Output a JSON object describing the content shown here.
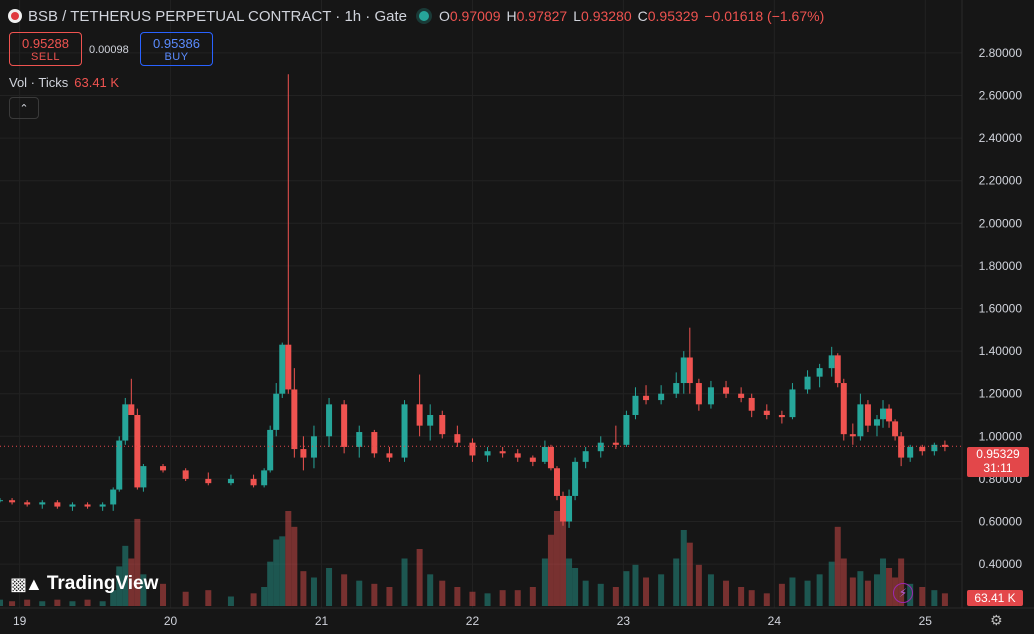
{
  "header": {
    "symbol_title": "BSB / TETHERUS PERPETUAL CONTRACT · 1h · Gate",
    "open_label": "O",
    "open": "0.97009",
    "high_label": "H",
    "high": "0.97827",
    "low_label": "L",
    "low": "0.93280",
    "close_label": "C",
    "close": "0.95329",
    "change": "−0.01618 (−1.67%)"
  },
  "trade": {
    "sell_price": "0.95288",
    "sell_label": "SELL",
    "spread": "0.00098",
    "buy_price": "0.95386",
    "buy_label": "BUY"
  },
  "volume_legend": {
    "label": "Vol · Ticks",
    "value": "63.41 K"
  },
  "collapse_icon": "chevron-up-icon",
  "brand": {
    "name": "TradingView",
    "icon": "tradingview-logo"
  },
  "last_price": {
    "price": "0.95329",
    "countdown": "31:11"
  },
  "volume_tag": "63.41 K",
  "colors": {
    "up": "#26a69a",
    "down": "#ef5350",
    "background": "#161616"
  },
  "chart_data": {
    "type": "candlestick",
    "y_axis": {
      "ticks": [
        "2.80000",
        "2.60000",
        "2.40000",
        "2.20000",
        "2.00000",
        "1.80000",
        "1.60000",
        "1.40000",
        "1.20000",
        "1.00000",
        "0.80000",
        "0.60000",
        "0.40000"
      ],
      "range": [
        0.33,
        2.87
      ]
    },
    "x_axis": {
      "ticks": [
        "19",
        "20",
        "21",
        "22",
        "23",
        "24",
        "25"
      ],
      "range": [
        18.87,
        25.23
      ]
    },
    "last_price_line": 0.95329,
    "candles": [
      {
        "x": 18.87,
        "o": 0.7,
        "h": 0.71,
        "l": 0.69,
        "c": 0.7
      },
      {
        "x": 18.95,
        "o": 0.7,
        "h": 0.71,
        "l": 0.68,
        "c": 0.69
      },
      {
        "x": 19.05,
        "o": 0.69,
        "h": 0.7,
        "l": 0.67,
        "c": 0.68
      },
      {
        "x": 19.15,
        "o": 0.68,
        "h": 0.7,
        "l": 0.66,
        "c": 0.69
      },
      {
        "x": 19.25,
        "o": 0.69,
        "h": 0.7,
        "l": 0.66,
        "c": 0.67
      },
      {
        "x": 19.35,
        "o": 0.67,
        "h": 0.69,
        "l": 0.65,
        "c": 0.68
      },
      {
        "x": 19.45,
        "o": 0.68,
        "h": 0.69,
        "l": 0.66,
        "c": 0.67
      },
      {
        "x": 19.55,
        "o": 0.67,
        "h": 0.69,
        "l": 0.65,
        "c": 0.68
      },
      {
        "x": 19.62,
        "o": 0.68,
        "h": 0.76,
        "l": 0.65,
        "c": 0.75
      },
      {
        "x": 19.66,
        "o": 0.75,
        "h": 1.0,
        "l": 0.74,
        "c": 0.98
      },
      {
        "x": 19.7,
        "o": 0.98,
        "h": 1.18,
        "l": 0.96,
        "c": 1.15
      },
      {
        "x": 19.74,
        "o": 1.15,
        "h": 1.27,
        "l": 1.1,
        "c": 1.1
      },
      {
        "x": 19.78,
        "o": 1.1,
        "h": 1.13,
        "l": 0.75,
        "c": 0.76
      },
      {
        "x": 19.82,
        "o": 0.76,
        "h": 0.87,
        "l": 0.74,
        "c": 0.86
      },
      {
        "x": 19.95,
        "o": 0.86,
        "h": 0.87,
        "l": 0.83,
        "c": 0.84
      },
      {
        "x": 20.1,
        "o": 0.84,
        "h": 0.85,
        "l": 0.79,
        "c": 0.8
      },
      {
        "x": 20.25,
        "o": 0.8,
        "h": 0.83,
        "l": 0.77,
        "c": 0.78
      },
      {
        "x": 20.4,
        "o": 0.78,
        "h": 0.82,
        "l": 0.77,
        "c": 0.8
      },
      {
        "x": 20.55,
        "o": 0.8,
        "h": 0.82,
        "l": 0.76,
        "c": 0.77
      },
      {
        "x": 20.62,
        "o": 0.77,
        "h": 0.85,
        "l": 0.76,
        "c": 0.84
      },
      {
        "x": 20.66,
        "o": 0.84,
        "h": 1.05,
        "l": 0.83,
        "c": 1.03
      },
      {
        "x": 20.7,
        "o": 1.03,
        "h": 1.25,
        "l": 1.0,
        "c": 1.2
      },
      {
        "x": 20.74,
        "o": 1.2,
        "h": 1.44,
        "l": 1.18,
        "c": 1.43
      },
      {
        "x": 20.78,
        "o": 1.43,
        "h": 2.7,
        "l": 1.2,
        "c": 1.22
      },
      {
        "x": 20.82,
        "o": 1.22,
        "h": 1.32,
        "l": 0.9,
        "c": 0.94
      },
      {
        "x": 20.88,
        "o": 0.94,
        "h": 1.0,
        "l": 0.84,
        "c": 0.9
      },
      {
        "x": 20.95,
        "o": 0.9,
        "h": 1.05,
        "l": 0.85,
        "c": 1.0
      },
      {
        "x": 21.05,
        "o": 1.0,
        "h": 1.18,
        "l": 0.95,
        "c": 1.15
      },
      {
        "x": 21.15,
        "o": 1.15,
        "h": 1.17,
        "l": 0.92,
        "c": 0.95
      },
      {
        "x": 21.25,
        "o": 0.95,
        "h": 1.05,
        "l": 0.9,
        "c": 1.02
      },
      {
        "x": 21.35,
        "o": 1.02,
        "h": 1.03,
        "l": 0.9,
        "c": 0.92
      },
      {
        "x": 21.45,
        "o": 0.92,
        "h": 0.95,
        "l": 0.88,
        "c": 0.9
      },
      {
        "x": 21.55,
        "o": 0.9,
        "h": 1.17,
        "l": 0.88,
        "c": 1.15
      },
      {
        "x": 21.65,
        "o": 1.15,
        "h": 1.29,
        "l": 1.0,
        "c": 1.05
      },
      {
        "x": 21.72,
        "o": 1.05,
        "h": 1.15,
        "l": 0.98,
        "c": 1.1
      },
      {
        "x": 21.8,
        "o": 1.1,
        "h": 1.12,
        "l": 0.99,
        "c": 1.01
      },
      {
        "x": 21.9,
        "o": 1.01,
        "h": 1.05,
        "l": 0.95,
        "c": 0.97
      },
      {
        "x": 22.0,
        "o": 0.97,
        "h": 0.99,
        "l": 0.88,
        "c": 0.91
      },
      {
        "x": 22.1,
        "o": 0.91,
        "h": 0.95,
        "l": 0.88,
        "c": 0.93
      },
      {
        "x": 22.2,
        "o": 0.93,
        "h": 0.95,
        "l": 0.9,
        "c": 0.92
      },
      {
        "x": 22.3,
        "o": 0.92,
        "h": 0.94,
        "l": 0.88,
        "c": 0.9
      },
      {
        "x": 22.4,
        "o": 0.9,
        "h": 0.91,
        "l": 0.86,
        "c": 0.88
      },
      {
        "x": 22.48,
        "o": 0.88,
        "h": 0.98,
        "l": 0.87,
        "c": 0.95
      },
      {
        "x": 22.52,
        "o": 0.95,
        "h": 0.96,
        "l": 0.84,
        "c": 0.85
      },
      {
        "x": 22.56,
        "o": 0.85,
        "h": 0.86,
        "l": 0.7,
        "c": 0.72
      },
      {
        "x": 22.6,
        "o": 0.72,
        "h": 0.74,
        "l": 0.58,
        "c": 0.6
      },
      {
        "x": 22.64,
        "o": 0.6,
        "h": 0.75,
        "l": 0.57,
        "c": 0.72
      },
      {
        "x": 22.68,
        "o": 0.72,
        "h": 0.9,
        "l": 0.7,
        "c": 0.88
      },
      {
        "x": 22.75,
        "o": 0.88,
        "h": 0.95,
        "l": 0.85,
        "c": 0.93
      },
      {
        "x": 22.85,
        "o": 0.93,
        "h": 1.0,
        "l": 0.9,
        "c": 0.97
      },
      {
        "x": 22.95,
        "o": 0.97,
        "h": 1.05,
        "l": 0.94,
        "c": 0.96
      },
      {
        "x": 23.02,
        "o": 0.96,
        "h": 1.12,
        "l": 0.95,
        "c": 1.1
      },
      {
        "x": 23.08,
        "o": 1.1,
        "h": 1.23,
        "l": 1.08,
        "c": 1.19
      },
      {
        "x": 23.15,
        "o": 1.19,
        "h": 1.24,
        "l": 1.15,
        "c": 1.17
      },
      {
        "x": 23.25,
        "o": 1.17,
        "h": 1.24,
        "l": 1.15,
        "c": 1.2
      },
      {
        "x": 23.35,
        "o": 1.2,
        "h": 1.3,
        "l": 1.18,
        "c": 1.25
      },
      {
        "x": 23.4,
        "o": 1.25,
        "h": 1.4,
        "l": 1.2,
        "c": 1.37
      },
      {
        "x": 23.44,
        "o": 1.37,
        "h": 1.51,
        "l": 1.2,
        "c": 1.25
      },
      {
        "x": 23.5,
        "o": 1.25,
        "h": 1.27,
        "l": 1.12,
        "c": 1.15
      },
      {
        "x": 23.58,
        "o": 1.15,
        "h": 1.26,
        "l": 1.13,
        "c": 1.23
      },
      {
        "x": 23.68,
        "o": 1.23,
        "h": 1.26,
        "l": 1.18,
        "c": 1.2
      },
      {
        "x": 23.78,
        "o": 1.2,
        "h": 1.23,
        "l": 1.16,
        "c": 1.18
      },
      {
        "x": 23.85,
        "o": 1.18,
        "h": 1.2,
        "l": 1.09,
        "c": 1.12
      },
      {
        "x": 23.95,
        "o": 1.12,
        "h": 1.15,
        "l": 1.08,
        "c": 1.1
      },
      {
        "x": 24.05,
        "o": 1.1,
        "h": 1.12,
        "l": 1.06,
        "c": 1.09
      },
      {
        "x": 24.12,
        "o": 1.09,
        "h": 1.25,
        "l": 1.08,
        "c": 1.22
      },
      {
        "x": 24.22,
        "o": 1.22,
        "h": 1.31,
        "l": 1.2,
        "c": 1.28
      },
      {
        "x": 24.3,
        "o": 1.28,
        "h": 1.34,
        "l": 1.23,
        "c": 1.32
      },
      {
        "x": 24.38,
        "o": 1.32,
        "h": 1.42,
        "l": 1.28,
        "c": 1.38
      },
      {
        "x": 24.42,
        "o": 1.38,
        "h": 1.39,
        "l": 1.23,
        "c": 1.25
      },
      {
        "x": 24.46,
        "o": 1.25,
        "h": 1.27,
        "l": 0.98,
        "c": 1.01
      },
      {
        "x": 24.52,
        "o": 1.01,
        "h": 1.06,
        "l": 0.96,
        "c": 1.0
      },
      {
        "x": 24.57,
        "o": 1.0,
        "h": 1.2,
        "l": 0.98,
        "c": 1.15
      },
      {
        "x": 24.62,
        "o": 1.15,
        "h": 1.17,
        "l": 1.02,
        "c": 1.05
      },
      {
        "x": 24.68,
        "o": 1.05,
        "h": 1.1,
        "l": 1.0,
        "c": 1.08
      },
      {
        "x": 24.72,
        "o": 1.08,
        "h": 1.17,
        "l": 1.04,
        "c": 1.13
      },
      {
        "x": 24.76,
        "o": 1.13,
        "h": 1.15,
        "l": 1.04,
        "c": 1.07
      },
      {
        "x": 24.8,
        "o": 1.07,
        "h": 1.08,
        "l": 0.98,
        "c": 1.0
      },
      {
        "x": 24.84,
        "o": 1.0,
        "h": 1.02,
        "l": 0.86,
        "c": 0.9
      },
      {
        "x": 24.9,
        "o": 0.9,
        "h": 0.96,
        "l": 0.88,
        "c": 0.95
      },
      {
        "x": 24.98,
        "o": 0.95,
        "h": 0.96,
        "l": 0.91,
        "c": 0.93
      },
      {
        "x": 25.06,
        "o": 0.93,
        "h": 0.97,
        "l": 0.91,
        "c": 0.96
      },
      {
        "x": 25.13,
        "o": 0.96,
        "h": 0.98,
        "l": 0.93,
        "c": 0.95
      }
    ],
    "volume": {
      "note": "relative volume per candle, same order as candles",
      "values": [
        4,
        3,
        4,
        3,
        4,
        3,
        4,
        3,
        10,
        25,
        38,
        30,
        55,
        20,
        14,
        9,
        10,
        6,
        8,
        12,
        28,
        42,
        44,
        60,
        50,
        22,
        18,
        24,
        20,
        16,
        14,
        12,
        30,
        36,
        20,
        16,
        12,
        9,
        8,
        10,
        10,
        12,
        30,
        45,
        60,
        55,
        30,
        24,
        16,
        14,
        12,
        22,
        26,
        18,
        20,
        30,
        48,
        40,
        26,
        20,
        16,
        12,
        10,
        8,
        14,
        18,
        16,
        20,
        28,
        50,
        30,
        18,
        22,
        16,
        20,
        30,
        24,
        18,
        30,
        14,
        12,
        10,
        8
      ],
      "max_scale": 60
    }
  }
}
